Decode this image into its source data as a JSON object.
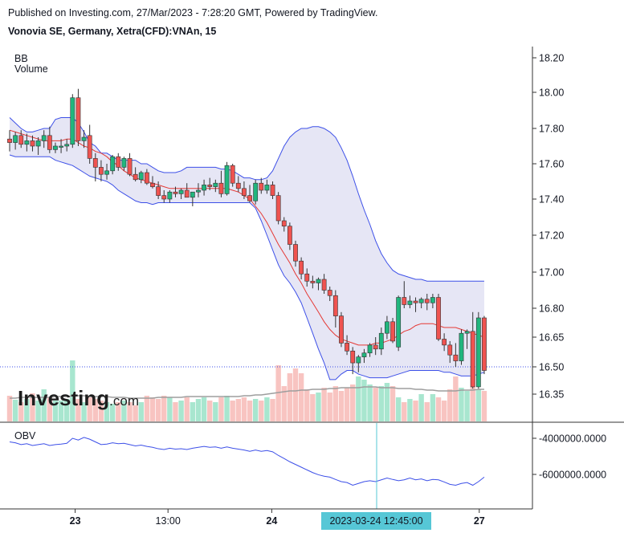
{
  "header": {
    "published_line": "Published on Investing.com, 27/Mar/2023 - 7:28:20 GMT, Powered by TradingView.",
    "instrument_line": "Vonovia SE, Germany, Xetra(CFD):VNAn, 15"
  },
  "legend": {
    "indicator": "BB",
    "volume": "Volume",
    "obv": "OBV"
  },
  "logo": {
    "brand": "Investing",
    "suffix": ".com"
  },
  "crosshair": {
    "time_label": "2023-03-24 12:45:00",
    "price_level": 16.5
  },
  "colors": {
    "up": "#26a69a",
    "up_fill": "#21b67e",
    "down": "#ef5350",
    "band": "#3d50e8",
    "basis": "#e53935",
    "band_fill": "#e6e6f5",
    "vol_up": "#a8e6cf",
    "vol_down": "#f8c4c1",
    "obv_line": "#3d50e8",
    "crosshair": "#56c7d6"
  },
  "chart_data": {
    "type": "candlestick",
    "price_axis": {
      "ticks": [
        "18.20",
        "18.00",
        "17.80",
        "17.60",
        "17.40",
        "17.20",
        "17.00",
        "16.80",
        "16.65",
        "16.50",
        "16.35"
      ],
      "ylim": [
        16.2,
        18.25
      ]
    },
    "obv_axis": {
      "ticks": [
        "-4000000.0000",
        "-6000000.0000"
      ]
    },
    "x_axis": {
      "ticks": [
        "23",
        "13:00",
        "24",
        "27"
      ]
    },
    "candles": [
      [
        17.74,
        17.79,
        17.67,
        17.72
      ],
      [
        17.72,
        17.78,
        17.68,
        17.76
      ],
      [
        17.76,
        17.79,
        17.69,
        17.71
      ],
      [
        17.71,
        17.77,
        17.67,
        17.73
      ],
      [
        17.73,
        17.76,
        17.67,
        17.7
      ],
      [
        17.7,
        17.75,
        17.65,
        17.73
      ],
      [
        17.73,
        17.79,
        17.69,
        17.76
      ],
      [
        17.76,
        17.81,
        17.66,
        17.68
      ],
      [
        17.68,
        17.72,
        17.66,
        17.7
      ],
      [
        17.7,
        17.74,
        17.66,
        17.7
      ],
      [
        17.7,
        17.74,
        17.67,
        17.71
      ],
      [
        17.71,
        17.99,
        17.69,
        17.97
      ],
      [
        17.97,
        18.02,
        17.7,
        17.73
      ],
      [
        17.73,
        17.79,
        17.69,
        17.75
      ],
      [
        17.76,
        17.82,
        17.6,
        17.63
      ],
      [
        17.63,
        17.66,
        17.5,
        17.58
      ],
      [
        17.58,
        17.62,
        17.5,
        17.54
      ],
      [
        17.54,
        17.6,
        17.51,
        17.56
      ],
      [
        17.56,
        17.65,
        17.54,
        17.64
      ],
      [
        17.64,
        17.66,
        17.56,
        17.58
      ],
      [
        17.58,
        17.64,
        17.56,
        17.63
      ],
      [
        17.63,
        17.66,
        17.53,
        17.54
      ],
      [
        17.54,
        17.58,
        17.5,
        17.51
      ],
      [
        17.51,
        17.56,
        17.49,
        17.55
      ],
      [
        17.55,
        17.57,
        17.48,
        17.49
      ],
      [
        17.49,
        17.53,
        17.46,
        17.47
      ],
      [
        17.47,
        17.5,
        17.4,
        17.42
      ],
      [
        17.42,
        17.45,
        17.38,
        17.4
      ],
      [
        17.4,
        17.45,
        17.38,
        17.44
      ],
      [
        17.44,
        17.47,
        17.41,
        17.43
      ],
      [
        17.43,
        17.46,
        17.4,
        17.45
      ],
      [
        17.45,
        17.49,
        17.42,
        17.41
      ],
      [
        17.41,
        17.44,
        17.36,
        17.44
      ],
      [
        17.44,
        17.49,
        17.41,
        17.45
      ],
      [
        17.45,
        17.51,
        17.42,
        17.48
      ],
      [
        17.48,
        17.52,
        17.45,
        17.47
      ],
      [
        17.47,
        17.51,
        17.44,
        17.49
      ],
      [
        17.49,
        17.56,
        17.41,
        17.43
      ],
      [
        17.43,
        17.61,
        17.42,
        17.59
      ],
      [
        17.59,
        17.6,
        17.47,
        17.49
      ],
      [
        17.49,
        17.53,
        17.44,
        17.46
      ],
      [
        17.46,
        17.5,
        17.4,
        17.42
      ],
      [
        17.42,
        17.48,
        17.38,
        17.39
      ],
      [
        17.39,
        17.51,
        17.37,
        17.49
      ],
      [
        17.49,
        17.52,
        17.43,
        17.45
      ],
      [
        17.45,
        17.51,
        17.43,
        17.48
      ],
      [
        17.48,
        17.5,
        17.4,
        17.42
      ],
      [
        17.42,
        17.44,
        17.26,
        17.28
      ],
      [
        17.28,
        17.3,
        17.22,
        17.25
      ],
      [
        17.25,
        17.27,
        17.12,
        17.15
      ],
      [
        17.15,
        17.17,
        17.03,
        17.06
      ],
      [
        17.06,
        17.08,
        16.96,
        16.99
      ],
      [
        16.99,
        17.02,
        16.92,
        16.95
      ],
      [
        16.95,
        16.98,
        16.91,
        16.94
      ],
      [
        16.94,
        16.97,
        16.9,
        16.96
      ],
      [
        16.96,
        16.99,
        16.88,
        16.9
      ],
      [
        16.9,
        16.92,
        16.84,
        16.87
      ],
      [
        16.87,
        16.9,
        16.7,
        16.76
      ],
      [
        16.76,
        16.78,
        16.6,
        16.62
      ],
      [
        16.62,
        16.66,
        16.56,
        16.58
      ],
      [
        16.58,
        16.6,
        16.46,
        16.52
      ],
      [
        16.52,
        16.56,
        16.47,
        16.55
      ],
      [
        16.55,
        16.59,
        16.52,
        16.57
      ],
      [
        16.57,
        16.62,
        16.55,
        16.61
      ],
      [
        16.61,
        16.65,
        16.56,
        16.59
      ],
      [
        16.59,
        16.7,
        16.56,
        16.67
      ],
      [
        16.67,
        16.76,
        16.64,
        16.73
      ],
      [
        16.73,
        16.75,
        16.62,
        16.63
      ],
      [
        16.6,
        16.87,
        16.58,
        16.86
      ],
      [
        16.86,
        16.95,
        16.8,
        16.82
      ],
      [
        16.82,
        16.87,
        16.8,
        16.84
      ],
      [
        16.84,
        16.86,
        16.78,
        16.83
      ],
      [
        16.83,
        16.86,
        16.8,
        16.85
      ],
      [
        16.85,
        16.88,
        16.79,
        16.83
      ],
      [
        16.83,
        16.88,
        16.8,
        16.86
      ],
      [
        16.86,
        16.88,
        16.63,
        16.64
      ],
      [
        16.64,
        16.67,
        16.58,
        16.61
      ],
      [
        16.61,
        16.63,
        16.52,
        16.56
      ],
      [
        16.56,
        16.62,
        16.5,
        16.53
      ],
      [
        16.53,
        16.69,
        16.51,
        16.67
      ],
      [
        16.67,
        16.69,
        16.59,
        16.68
      ],
      [
        16.68,
        16.78,
        16.38,
        16.39
      ],
      [
        16.39,
        16.78,
        16.38,
        16.75
      ],
      [
        16.75,
        16.76,
        16.46,
        16.48
      ]
    ],
    "bb_upper": [
      17.86,
      17.83,
      17.8,
      17.78,
      17.78,
      17.79,
      17.8,
      17.8,
      17.85,
      17.86,
      17.86,
      17.86,
      17.83,
      17.78,
      17.72,
      17.7,
      17.66,
      17.66,
      17.64,
      17.62,
      17.62,
      17.62,
      17.62,
      17.6,
      17.6,
      17.58,
      17.56,
      17.55,
      17.55,
      17.55,
      17.56,
      17.58,
      17.58,
      17.58,
      17.58,
      17.58,
      17.58,
      17.57,
      17.57,
      17.56,
      17.54,
      17.52,
      17.52,
      17.51,
      17.51,
      17.52,
      17.56,
      17.63,
      17.7,
      17.75,
      17.78,
      17.8,
      17.8,
      17.81,
      17.81,
      17.8,
      17.78,
      17.75,
      17.69,
      17.62,
      17.53,
      17.43,
      17.34,
      17.26,
      17.17,
      17.1,
      17.05,
      17.01,
      16.99,
      16.98,
      16.97,
      16.96,
      16.96,
      16.95,
      16.95,
      16.95,
      16.95,
      16.95,
      16.95,
      16.95,
      16.95,
      16.95,
      16.95,
      16.95
    ],
    "bb_lower": [
      17.65,
      17.64,
      17.64,
      17.64,
      17.64,
      17.64,
      17.64,
      17.64,
      17.62,
      17.61,
      17.6,
      17.59,
      17.57,
      17.55,
      17.53,
      17.52,
      17.51,
      17.5,
      17.48,
      17.45,
      17.43,
      17.41,
      17.39,
      17.38,
      17.38,
      17.37,
      17.38,
      17.38,
      17.38,
      17.38,
      17.38,
      17.38,
      17.38,
      17.38,
      17.38,
      17.38,
      17.38,
      17.38,
      17.38,
      17.38,
      17.38,
      17.38,
      17.38,
      17.35,
      17.28,
      17.2,
      17.12,
      17.04,
      16.98,
      16.94,
      16.89,
      16.83,
      16.75,
      16.67,
      16.59,
      16.52,
      16.43,
      16.43,
      16.46,
      16.48,
      16.48,
      16.46,
      16.45,
      16.44,
      16.44,
      16.44,
      16.44,
      16.45,
      16.46,
      16.47,
      16.48,
      16.48,
      16.48,
      16.48,
      16.48,
      16.48,
      16.47,
      16.47,
      16.46,
      16.45,
      16.45,
      16.45,
      16.46,
      16.47
    ],
    "bb_basis": [
      17.79,
      17.78,
      17.77,
      17.76,
      17.75,
      17.74,
      17.73,
      17.73,
      17.73,
      17.73,
      17.74,
      17.74,
      17.72,
      17.7,
      17.69,
      17.67,
      17.66,
      17.64,
      17.61,
      17.59,
      17.56,
      17.54,
      17.52,
      17.51,
      17.5,
      17.49,
      17.48,
      17.47,
      17.46,
      17.46,
      17.46,
      17.46,
      17.46,
      17.46,
      17.46,
      17.46,
      17.46,
      17.46,
      17.46,
      17.45,
      17.44,
      17.42,
      17.4,
      17.36,
      17.32,
      17.27,
      17.21,
      17.15,
      17.1,
      17.05,
      16.99,
      16.94,
      16.88,
      16.83,
      16.78,
      16.73,
      16.69,
      16.66,
      16.64,
      16.63,
      16.62,
      16.61,
      16.61,
      16.61,
      16.62,
      16.62,
      16.63,
      16.64,
      16.66,
      16.68,
      16.69,
      16.71,
      16.72,
      16.72,
      16.72,
      16.71,
      16.7,
      16.7,
      16.7,
      16.69,
      16.68,
      16.67,
      16.66,
      16.65
    ],
    "volume": [
      32,
      27,
      24,
      28,
      35,
      26,
      40,
      30,
      26,
      26,
      28,
      76,
      28,
      24,
      30,
      28,
      26,
      24,
      22,
      24,
      26,
      24,
      20,
      24,
      32,
      30,
      28,
      32,
      30,
      24,
      26,
      30,
      24,
      28,
      30,
      26,
      24,
      30,
      32,
      26,
      28,
      30,
      26,
      28,
      26,
      30,
      28,
      70,
      44,
      60,
      66,
      60,
      40,
      34,
      36,
      42,
      36,
      44,
      38,
      42,
      46,
      56,
      52,
      46,
      42,
      44,
      48,
      44,
      30,
      24,
      28,
      26,
      34,
      24,
      34,
      30,
      26,
      40,
      56,
      42,
      38,
      66,
      40,
      38
    ],
    "vol_ma": [
      29,
      29,
      30,
      30,
      30,
      30,
      30,
      30,
      31,
      31,
      31,
      32,
      32,
      32,
      31,
      31,
      31,
      31,
      30,
      30,
      30,
      29,
      29,
      29,
      29,
      29,
      30,
      30,
      30,
      30,
      30,
      31,
      31,
      31,
      31,
      31,
      31,
      31,
      31,
      31,
      31,
      32,
      32,
      33,
      33,
      34,
      35,
      36,
      37,
      38,
      38,
      39,
      39,
      40,
      40,
      40,
      41,
      41,
      42,
      42,
      42,
      42,
      43,
      43,
      43,
      42,
      42,
      42,
      41,
      41,
      41,
      40,
      40,
      39,
      39,
      38,
      38,
      38,
      38,
      39,
      39,
      39,
      40,
      40
    ],
    "obv": [
      -4.2,
      -4.25,
      -4.35,
      -4.3,
      -4.4,
      -4.35,
      -4.3,
      -4.4,
      -4.35,
      -4.32,
      -4.28,
      -4.0,
      -4.1,
      -3.95,
      -4.05,
      -4.2,
      -4.35,
      -4.32,
      -4.25,
      -4.3,
      -4.28,
      -4.35,
      -4.42,
      -4.38,
      -4.45,
      -4.5,
      -4.58,
      -4.62,
      -4.55,
      -4.6,
      -4.58,
      -4.62,
      -4.55,
      -4.5,
      -4.45,
      -4.5,
      -4.48,
      -4.55,
      -4.48,
      -4.55,
      -4.6,
      -4.65,
      -4.72,
      -4.65,
      -4.72,
      -4.68,
      -4.75,
      -4.95,
      -5.12,
      -5.3,
      -5.45,
      -5.6,
      -5.75,
      -5.9,
      -6.02,
      -6.1,
      -6.15,
      -6.28,
      -6.4,
      -6.45,
      -6.6,
      -6.5,
      -6.4,
      -6.35,
      -6.4,
      -6.3,
      -6.2,
      -6.28,
      -6.35,
      -6.3,
      -6.2,
      -6.3,
      -6.25,
      -6.35,
      -6.28,
      -6.3,
      -6.42,
      -6.55,
      -6.6,
      -6.5,
      -6.45,
      -6.6,
      -6.4,
      -6.15
    ]
  }
}
